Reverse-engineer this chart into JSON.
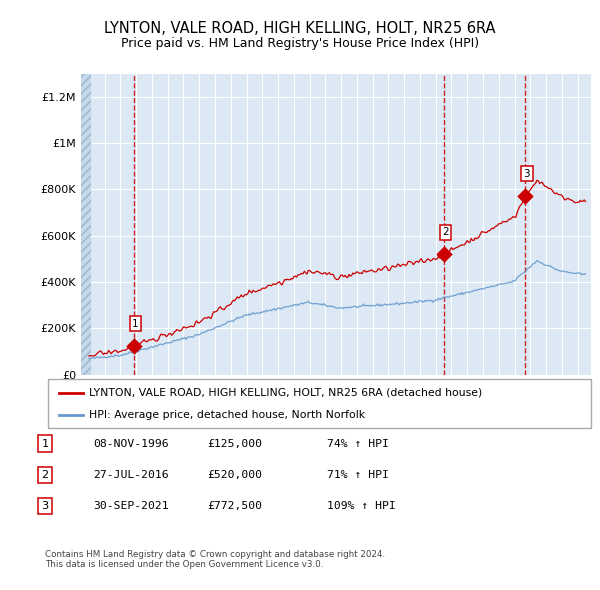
{
  "title": "LYNTON, VALE ROAD, HIGH KELLING, HOLT, NR25 6RA",
  "subtitle": "Price paid vs. HM Land Registry's House Price Index (HPI)",
  "ylim": [
    0,
    1300000
  ],
  "yticks": [
    0,
    200000,
    400000,
    600000,
    800000,
    1000000,
    1200000
  ],
  "ytick_labels": [
    "£0",
    "£200K",
    "£400K",
    "£600K",
    "£800K",
    "£1M",
    "£1.2M"
  ],
  "sale_prices": [
    125000,
    520000,
    772500
  ],
  "sale_labels": [
    "1",
    "2",
    "3"
  ],
  "table_rows": [
    [
      "1",
      "08-NOV-1996",
      "£125,000",
      "74% ↑ HPI"
    ],
    [
      "2",
      "27-JUL-2016",
      "£520,000",
      "71% ↑ HPI"
    ],
    [
      "3",
      "30-SEP-2021",
      "£772,500",
      "109% ↑ HPI"
    ]
  ],
  "legend_line1": "LYNTON, VALE ROAD, HIGH KELLING, HOLT, NR25 6RA (detached house)",
  "legend_line2": "HPI: Average price, detached house, North Norfolk",
  "footer": "Contains HM Land Registry data © Crown copyright and database right 2024.\nThis data is licensed under the Open Government Licence v3.0.",
  "property_color": "#cc0000",
  "hpi_color": "#6699cc",
  "background_color": "#dce9f5",
  "grid_color": "#ffffff",
  "dashed_color": "#cc2222"
}
